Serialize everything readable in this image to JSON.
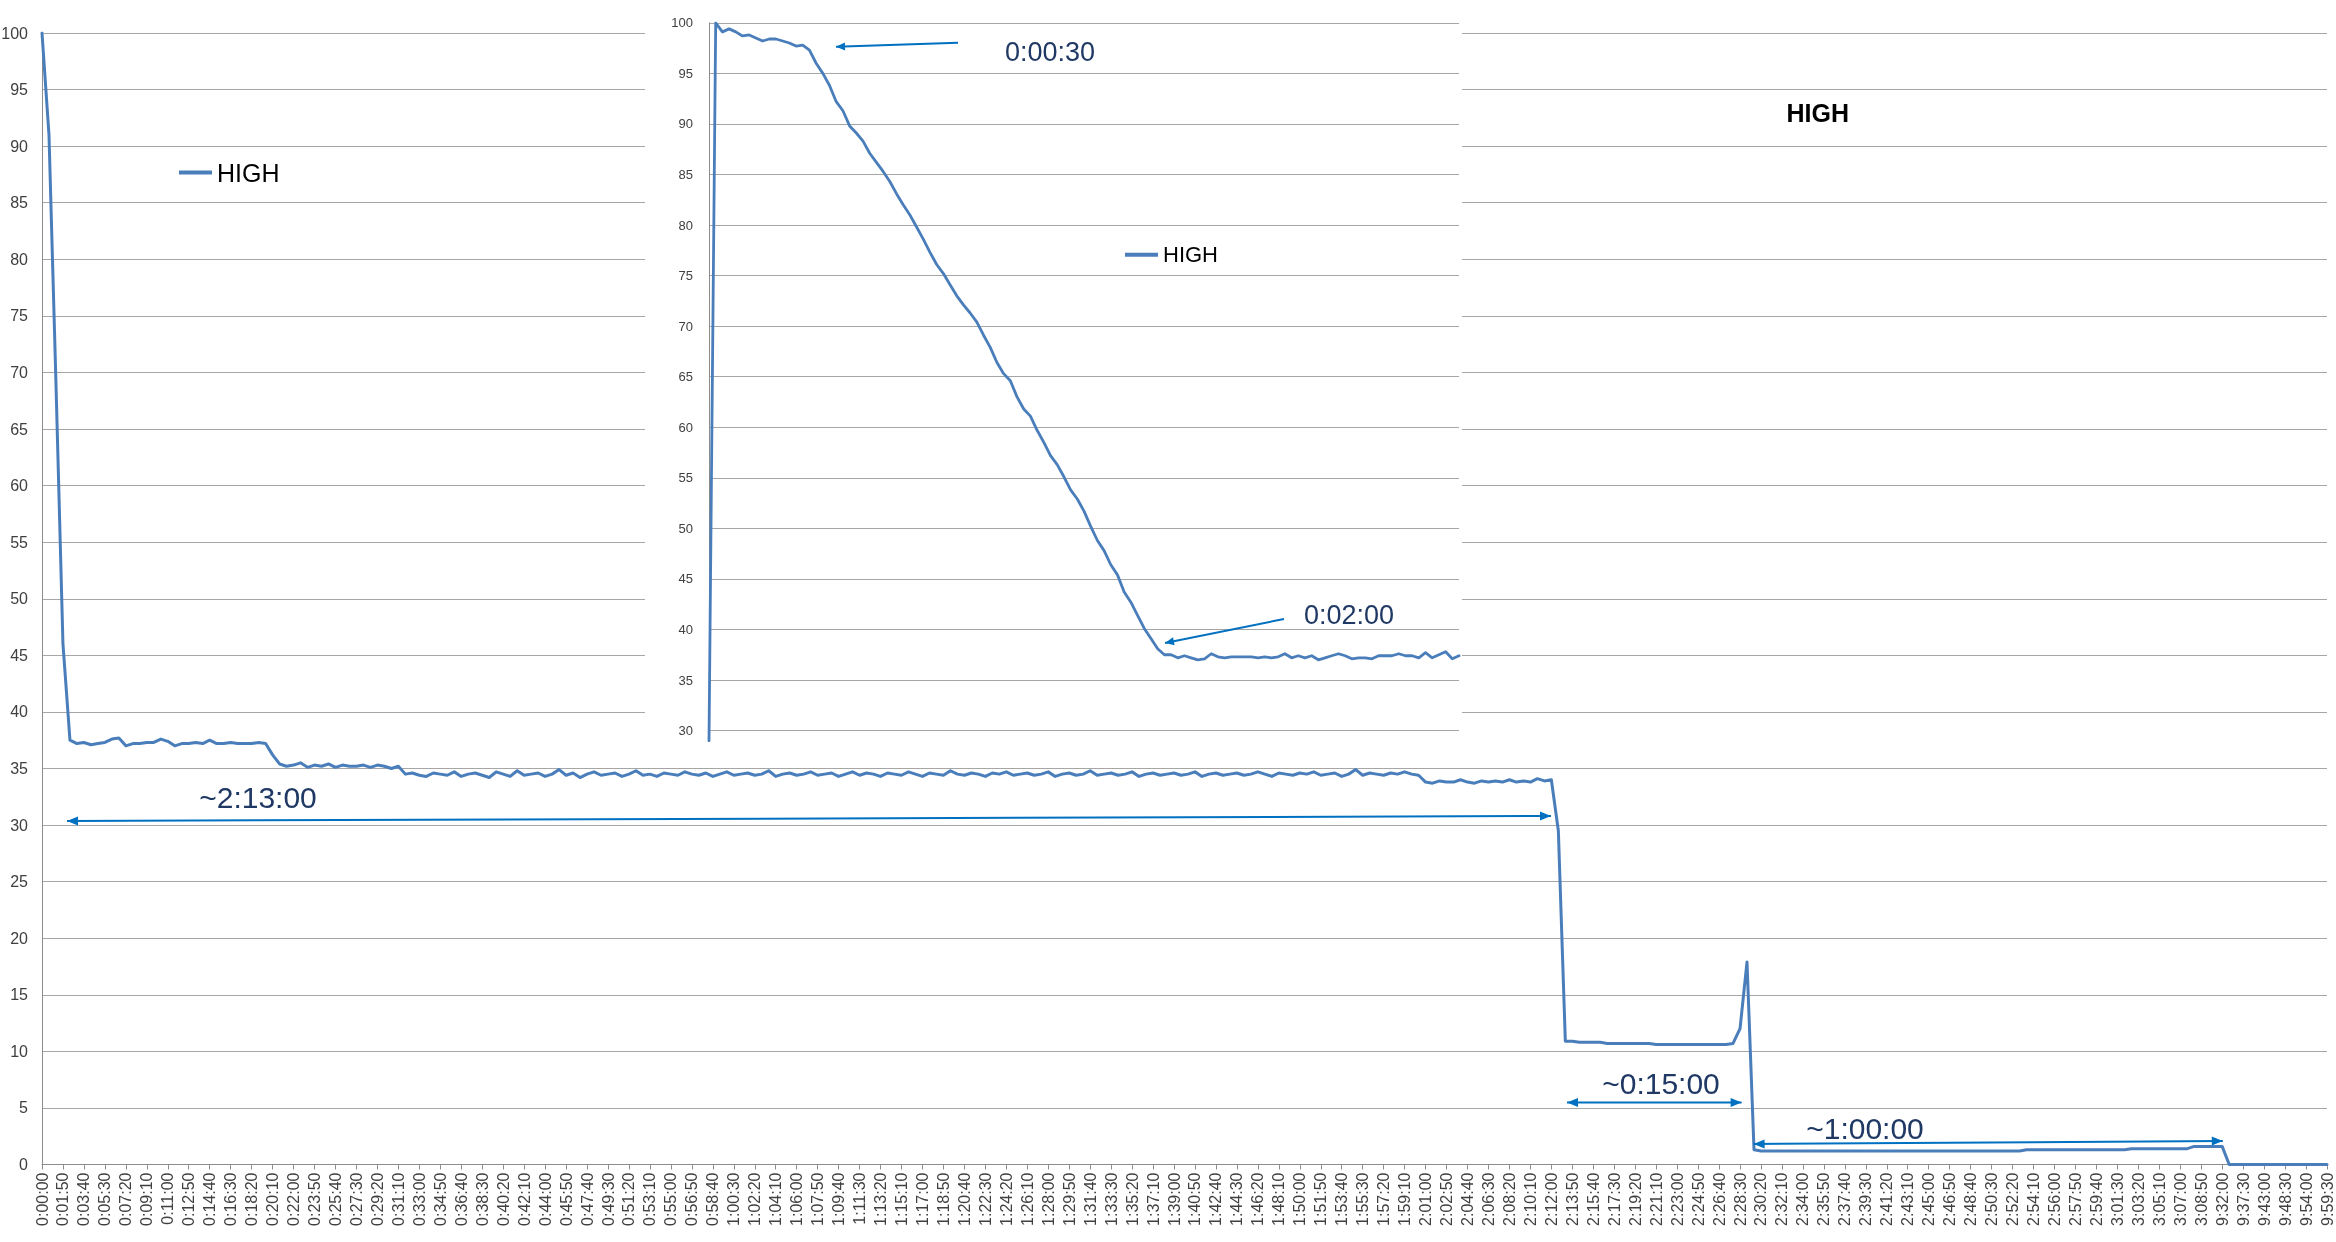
{
  "chart_data": [
    {
      "type": "line",
      "title": "HIGH",
      "categories": [
        "0:00:00",
        null,
        null,
        "0:01:50",
        null,
        null,
        "0:03:40",
        null,
        null,
        "0:05:30",
        null,
        null,
        "0:07:20",
        null,
        null,
        "0:09:10",
        null,
        null,
        "0:11:00",
        null,
        null,
        "0:12:50",
        null,
        null,
        "0:14:40",
        null,
        null,
        "0:16:30",
        null,
        null,
        "0:18:20",
        null,
        null,
        "0:20:10",
        null,
        null,
        "0:22:00",
        null,
        null,
        "0:23:50",
        null,
        null,
        "0:25:40",
        null,
        null,
        "0:27:30",
        null,
        null,
        "0:29:20",
        null,
        null,
        "0:31:10",
        null,
        null,
        "0:33:00",
        null,
        null,
        "0:34:50",
        null,
        null,
        "0:36:40",
        null,
        null,
        "0:38:30",
        null,
        null,
        "0:40:20",
        null,
        null,
        "0:42:10",
        null,
        null,
        "0:44:00",
        null,
        null,
        "0:45:50",
        null,
        null,
        "0:47:40",
        null,
        null,
        "0:49:30",
        null,
        null,
        "0:51:20",
        null,
        null,
        "0:53:10",
        null,
        null,
        "0:55:00",
        null,
        null,
        "0:56:50",
        null,
        null,
        "0:58:40",
        null,
        null,
        "1:00:30",
        null,
        null,
        "1:02:20",
        null,
        null,
        "1:04:10",
        null,
        null,
        "1:06:00",
        null,
        null,
        "1:07:50",
        null,
        null,
        "1:09:40",
        null,
        null,
        "1:11:30",
        null,
        null,
        "1:13:20",
        null,
        null,
        "1:15:10",
        null,
        null,
        "1:17:00",
        null,
        null,
        "1:18:50",
        null,
        null,
        "1:20:40",
        null,
        null,
        "1:22:30",
        null,
        null,
        "1:24:20",
        null,
        null,
        "1:26:10",
        null,
        null,
        "1:28:00",
        null,
        null,
        "1:29:50",
        null,
        null,
        "1:31:40",
        null,
        null,
        "1:33:30",
        null,
        null,
        "1:35:20",
        null,
        null,
        "1:37:10",
        null,
        null,
        "1:39:00",
        null,
        null,
        "1:40:50",
        null,
        null,
        "1:42:40",
        null,
        null,
        "1:44:30",
        null,
        null,
        "1:46:20",
        null,
        null,
        "1:48:10",
        null,
        null,
        "1:50:00",
        null,
        null,
        "1:51:50",
        null,
        null,
        "1:53:40",
        null,
        null,
        "1:55:30",
        null,
        null,
        "1:57:20",
        null,
        null,
        "1:59:10",
        null,
        null,
        "2:01:00",
        null,
        null,
        "2:02:50",
        null,
        null,
        "2:04:40",
        null,
        null,
        "2:06:30",
        null,
        null,
        "2:08:20",
        null,
        null,
        "2:10:10",
        null,
        null,
        "2:12:00",
        null,
        null,
        "2:13:50",
        null,
        null,
        "2:15:40",
        null,
        null,
        "2:17:30",
        null,
        null,
        "2:19:20",
        null,
        null,
        "2:21:10",
        null,
        null,
        "2:23:00",
        null,
        null,
        "2:24:50",
        null,
        null,
        "2:26:40",
        null,
        null,
        "2:28:30",
        null,
        null,
        "2:30:20",
        null,
        null,
        "2:32:10",
        null,
        null,
        "2:34:00",
        null,
        null,
        "2:35:50",
        null,
        null,
        "2:37:40",
        null,
        null,
        "2:39:30",
        null,
        null,
        "2:41:20",
        null,
        null,
        "2:43:10",
        null,
        null,
        "2:45:00",
        null,
        null,
        "2:46:50",
        null,
        null,
        "2:48:40",
        null,
        null,
        "2:50:30",
        null,
        null,
        "2:52:20",
        null,
        null,
        "2:54:10",
        null,
        null,
        "2:56:00",
        null,
        null,
        "2:57:50",
        null,
        null,
        "2:59:40",
        null,
        null,
        "3:01:30",
        null,
        null,
        "3:03:20",
        null,
        null,
        "3:05:10",
        null,
        null,
        "3:07:00",
        null,
        null,
        "3:08:50",
        null,
        null,
        "9:32:00",
        null,
        null,
        "9:37:30",
        null,
        null,
        "9:43:00",
        null,
        null,
        "9:48:30",
        null,
        null,
        "9:54:00",
        null,
        null,
        "9:59:30"
      ],
      "series": [
        {
          "name": "HIGH",
          "color": "#4a7ebb",
          "values": [
            100,
            91,
            69,
            46,
            37.5,
            37.2,
            37.3,
            37.1,
            37.2,
            37.3,
            37.6,
            37.7,
            37.0,
            37.2,
            37.2,
            37.3,
            37.3,
            37.6,
            37.4,
            37.0,
            37.2,
            37.2,
            37.3,
            37.2,
            37.5,
            37.2,
            37.2,
            37.3,
            37.2,
            37.2,
            37.2,
            37.3,
            37.2,
            36.2,
            35.4,
            35.2,
            35.3,
            35.5,
            35.1,
            35.3,
            35.2,
            35.4,
            35.1,
            35.3,
            35.2,
            35.2,
            35.3,
            35.1,
            35.3,
            35.2,
            35.0,
            35.2,
            34.5,
            34.6,
            34.4,
            34.3,
            34.6,
            34.5,
            34.4,
            34.7,
            34.3,
            34.5,
            34.6,
            34.4,
            34.2,
            34.7,
            34.5,
            34.3,
            34.8,
            34.4,
            34.5,
            34.6,
            34.3,
            34.5,
            34.9,
            34.4,
            34.6,
            34.2,
            34.5,
            34.7,
            34.4,
            34.5,
            34.6,
            34.3,
            34.5,
            34.8,
            34.4,
            34.5,
            34.3,
            34.6,
            34.5,
            34.4,
            34.7,
            34.5,
            34.4,
            34.6,
            34.3,
            34.5,
            34.7,
            34.4,
            34.5,
            34.6,
            34.4,
            34.5,
            34.8,
            34.3,
            34.5,
            34.6,
            34.4,
            34.5,
            34.7,
            34.4,
            34.5,
            34.6,
            34.3,
            34.5,
            34.7,
            34.4,
            34.6,
            34.5,
            34.3,
            34.6,
            34.5,
            34.4,
            34.7,
            34.5,
            34.3,
            34.6,
            34.5,
            34.4,
            34.8,
            34.5,
            34.4,
            34.6,
            34.5,
            34.3,
            34.6,
            34.5,
            34.7,
            34.4,
            34.5,
            34.6,
            34.4,
            34.5,
            34.7,
            34.3,
            34.5,
            34.6,
            34.4,
            34.5,
            34.8,
            34.4,
            34.5,
            34.6,
            34.4,
            34.5,
            34.7,
            34.3,
            34.5,
            34.6,
            34.4,
            34.5,
            34.6,
            34.4,
            34.5,
            34.7,
            34.3,
            34.5,
            34.6,
            34.4,
            34.5,
            34.6,
            34.4,
            34.5,
            34.7,
            34.5,
            34.3,
            34.6,
            34.5,
            34.4,
            34.6,
            34.5,
            34.7,
            34.4,
            34.5,
            34.6,
            34.3,
            34.5,
            34.9,
            34.4,
            34.6,
            34.5,
            34.4,
            34.6,
            34.5,
            34.7,
            34.5,
            34.4,
            33.8,
            33.7,
            33.9,
            33.8,
            33.8,
            34.0,
            33.8,
            33.7,
            33.9,
            33.8,
            33.9,
            33.8,
            34.0,
            33.8,
            33.9,
            33.8,
            34.1,
            33.9,
            34.0,
            29.5,
            10.9,
            10.9,
            10.8,
            10.8,
            10.8,
            10.8,
            10.7,
            10.7,
            10.7,
            10.7,
            10.7,
            10.7,
            10.7,
            10.6,
            10.6,
            10.6,
            10.6,
            10.6,
            10.6,
            10.6,
            10.6,
            10.6,
            10.6,
            10.6,
            10.7,
            12.0,
            17.9,
            1.3,
            1.2,
            1.2,
            1.2,
            1.2,
            1.2,
            1.2,
            1.2,
            1.2,
            1.2,
            1.2,
            1.2,
            1.2,
            1.2,
            1.2,
            1.2,
            1.2,
            1.2,
            1.2,
            1.2,
            1.2,
            1.2,
            1.2,
            1.2,
            1.2,
            1.2,
            1.2,
            1.2,
            1.2,
            1.2,
            1.2,
            1.2,
            1.2,
            1.2,
            1.2,
            1.2,
            1.2,
            1.2,
            1.2,
            1.3,
            1.3,
            1.3,
            1.3,
            1.3,
            1.3,
            1.3,
            1.3,
            1.3,
            1.3,
            1.3,
            1.3,
            1.3,
            1.3,
            1.3,
            1.4,
            1.4,
            1.4,
            1.4,
            1.4,
            1.4,
            1.4,
            1.4,
            1.4,
            1.6,
            1.6,
            1.6,
            1.6,
            1.6,
            0,
            0,
            0,
            0,
            0,
            0,
            0,
            0,
            0,
            0,
            0,
            0,
            0,
            0,
            0
          ]
        }
      ],
      "ylim": [
        0,
        100
      ],
      "yticks": [
        0,
        5,
        10,
        15,
        20,
        25,
        30,
        35,
        40,
        45,
        50,
        55,
        60,
        65,
        70,
        75,
        80,
        85,
        90,
        95,
        100
      ],
      "grid": "y",
      "legend": "top left",
      "marker": "none",
      "annotations": [
        "~2:13:00",
        "~0:15:00",
        "~1:00:00"
      ]
    },
    {
      "type": "line",
      "categories": [
        null,
        null,
        null,
        null,
        null,
        null,
        null,
        null,
        null,
        null,
        null,
        null,
        null,
        null,
        null,
        null,
        null,
        null,
        null,
        null,
        null,
        null,
        null,
        null,
        null,
        null,
        null,
        null,
        null,
        null,
        null,
        null,
        null,
        null,
        null,
        null,
        null,
        null,
        null,
        null,
        null,
        null,
        null,
        null,
        null,
        null,
        null,
        null,
        null,
        null,
        null,
        null,
        null,
        null,
        null,
        null,
        null,
        null,
        null,
        null,
        null,
        null,
        null,
        null,
        null,
        null,
        null,
        null,
        null,
        null,
        null,
        null,
        null,
        null,
        null,
        null,
        null,
        null,
        null,
        null,
        null,
        null,
        null,
        null,
        null,
        null,
        null,
        null,
        null,
        null,
        null,
        null,
        null,
        null,
        null,
        null,
        null,
        null,
        null,
        null,
        null,
        null,
        null,
        null,
        null,
        null,
        null,
        null,
        null,
        null,
        null,
        null,
        null
      ],
      "series": [
        {
          "name": "HIGH",
          "color": "#4a7ebb",
          "values": [
            29,
            100,
            99.1,
            99.4,
            99.1,
            98.7,
            98.8,
            98.5,
            98.2,
            98.4,
            98.4,
            98.2,
            98.0,
            97.7,
            97.8,
            97.3,
            96.0,
            95.0,
            93.8,
            92.2,
            91.3,
            89.8,
            89.1,
            88.3,
            87.1,
            86.2,
            85.3,
            84.3,
            83.1,
            82.0,
            81.0,
            79.8,
            78.6,
            77.3,
            76.1,
            75.2,
            74.1,
            73.0,
            72.1,
            71.3,
            70.4,
            69.1,
            67.9,
            66.4,
            65.3,
            64.6,
            63.0,
            61.8,
            61.1,
            59.7,
            58.5,
            57.2,
            56.3,
            55.1,
            53.8,
            52.9,
            51.7,
            50.2,
            48.8,
            47.8,
            46.4,
            45.4,
            43.7,
            42.7,
            41.4,
            40.1,
            39.1,
            38.1,
            37.5,
            37.5,
            37.2,
            37.4,
            37.2,
            37.0,
            37.1,
            37.6,
            37.3,
            37.2,
            37.3,
            37.3,
            37.3,
            37.3,
            37.2,
            37.3,
            37.2,
            37.3,
            37.6,
            37.2,
            37.4,
            37.2,
            37.4,
            37.0,
            37.2,
            37.4,
            37.6,
            37.4,
            37.1,
            37.2,
            37.2,
            37.1,
            37.4,
            37.4,
            37.4,
            37.6,
            37.4,
            37.4,
            37.2,
            37.7,
            37.2,
            37.5,
            37.8,
            37.1,
            37.4
          ]
        }
      ],
      "ylim": [
        29,
        100
      ],
      "yticks": [
        30,
        35,
        40,
        45,
        50,
        55,
        60,
        65,
        70,
        75,
        80,
        85,
        90,
        95,
        100
      ],
      "grid": "y",
      "legend": "top right",
      "marker": "none",
      "tick_labels": "y",
      "annotations": [
        "0:00:30",
        "0:02:00"
      ]
    }
  ]
}
